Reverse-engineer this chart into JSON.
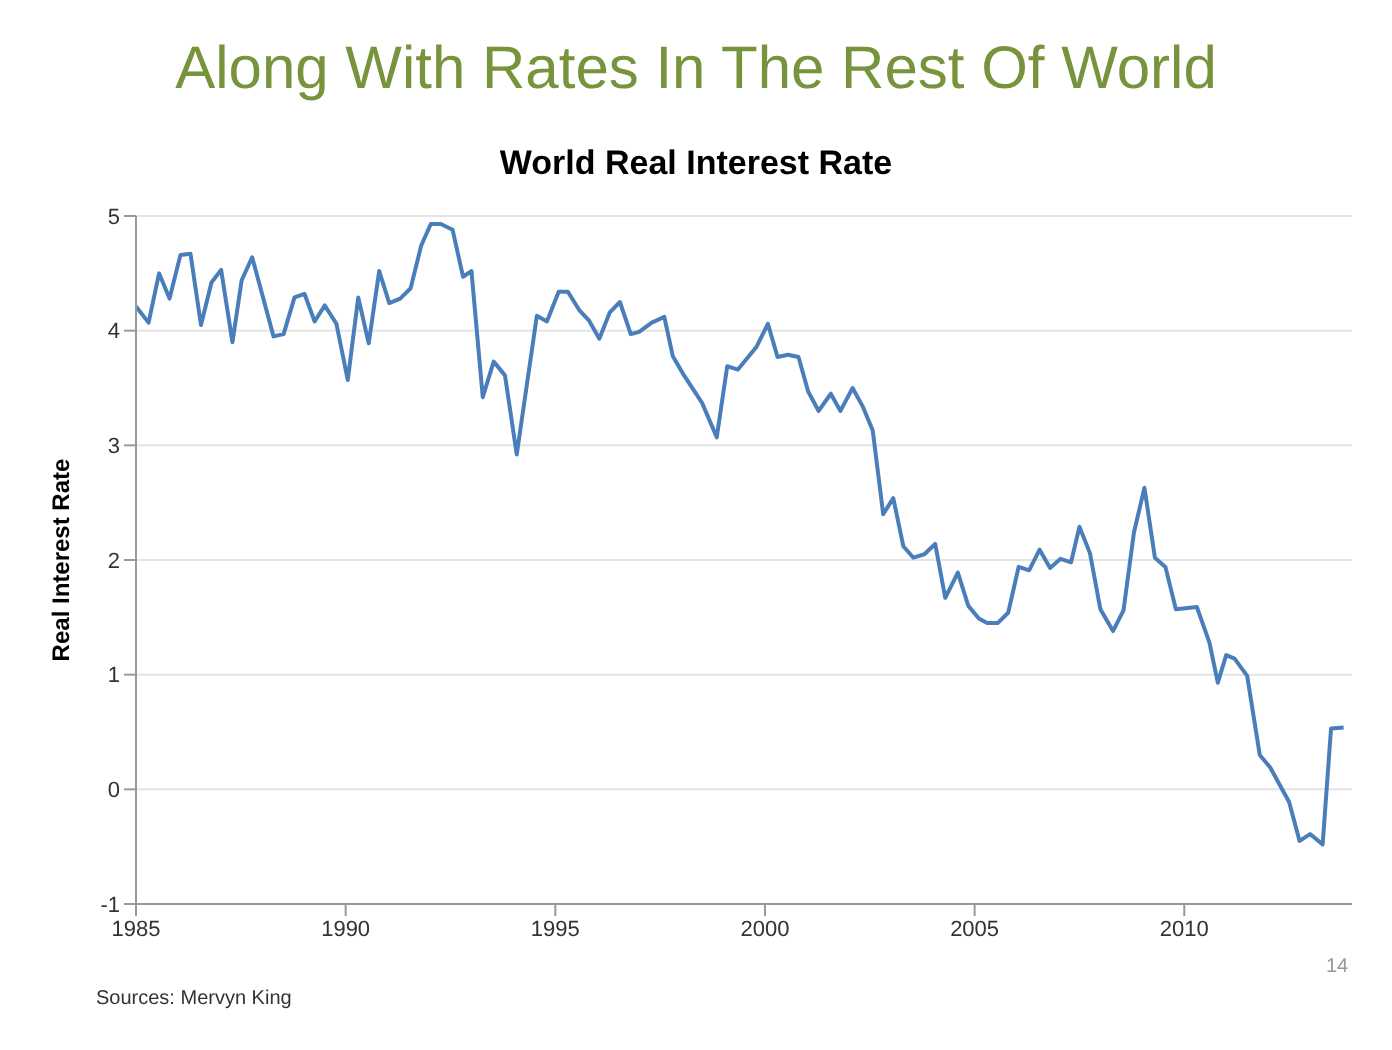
{
  "chart_data": {
    "type": "line",
    "title": "World Real Interest Rate",
    "subtitle": "Along With Rates In The Rest Of World",
    "ylabel": "Real Interest Rate",
    "annotations": [
      "Sources: Mervyn King",
      "14"
    ],
    "x": [
      1985.0,
      1985.3,
      1985.55,
      1985.8,
      1986.06,
      1986.3,
      1986.55,
      1986.8,
      1987.03,
      1987.3,
      1987.52,
      1987.77,
      1988.03,
      1988.28,
      1988.52,
      1988.78,
      1989.02,
      1989.26,
      1989.5,
      1989.78,
      1990.05,
      1990.3,
      1990.55,
      1990.8,
      1991.04,
      1991.3,
      1991.55,
      1991.8,
      1992.03,
      1992.27,
      1992.55,
      1992.8,
      1993.0,
      1993.27,
      1993.53,
      1993.8,
      1994.08,
      1994.56,
      1994.8,
      1995.08,
      1995.3,
      1995.57,
      1995.8,
      1996.05,
      1996.3,
      1996.54,
      1996.8,
      1997.0,
      1997.3,
      1997.6,
      1997.8,
      1998.07,
      1998.5,
      1998.85,
      1999.1,
      1999.35,
      1999.6,
      1999.8,
      2000.07,
      2000.3,
      2000.55,
      2000.8,
      2001.03,
      2001.28,
      2001.57,
      2001.8,
      2002.09,
      2002.33,
      2002.57,
      2002.82,
      2003.06,
      2003.3,
      2003.54,
      2003.8,
      2004.06,
      2004.3,
      2004.6,
      2004.85,
      2005.1,
      2005.3,
      2005.55,
      2005.8,
      2006.05,
      2006.3,
      2006.55,
      2006.8,
      2007.05,
      2007.3,
      2007.5,
      2007.75,
      2008.0,
      2008.3,
      2008.55,
      2008.8,
      2009.05,
      2009.3,
      2009.55,
      2009.8,
      2010.3,
      2010.6,
      2010.8,
      2011.0,
      2011.2,
      2011.5,
      2011.8,
      2012.05,
      2012.5,
      2012.75,
      2013.0,
      2013.3,
      2013.5,
      2013.8
    ],
    "series": [
      {
        "color": "#4a7ebb",
        "values": [
          4.21,
          4.07,
          4.5,
          4.28,
          4.66,
          4.67,
          4.05,
          4.42,
          4.53,
          3.9,
          4.44,
          4.64,
          4.29,
          3.95,
          3.97,
          4.29,
          4.32,
          4.08,
          4.22,
          4.06,
          3.57,
          4.29,
          3.89,
          4.52,
          4.24,
          4.28,
          4.37,
          4.74,
          4.93,
          4.93,
          4.88,
          4.47,
          4.52,
          3.42,
          3.73,
          3.61,
          2.92,
          4.13,
          4.08,
          4.34,
          4.34,
          4.18,
          4.09,
          3.93,
          4.16,
          4.25,
          3.97,
          3.99,
          4.07,
          4.12,
          3.78,
          3.61,
          3.37,
          3.07,
          3.69,
          3.66,
          3.77,
          3.86,
          4.06,
          3.77,
          3.79,
          3.77,
          3.47,
          3.3,
          3.45,
          3.3,
          3.5,
          3.34,
          3.13,
          2.4,
          2.54,
          2.12,
          2.02,
          2.05,
          2.14,
          1.67,
          1.89,
          1.6,
          1.49,
          1.45,
          1.45,
          1.54,
          1.94,
          1.91,
          2.09,
          1.93,
          2.01,
          1.98,
          2.29,
          2.06,
          1.57,
          1.38,
          1.56,
          2.24,
          2.63,
          2.02,
          1.94,
          1.57,
          1.59,
          1.28,
          0.93,
          1.17,
          1.14,
          0.99,
          0.3,
          0.19,
          -0.11,
          -0.45,
          -0.39,
          -0.48,
          0.53,
          0.54
        ]
      }
    ],
    "xlim": [
      1985,
      2014
    ],
    "xticks": [
      1985,
      1990,
      1995,
      2000,
      2005,
      2010
    ],
    "ylim": [
      -1,
      5
    ],
    "yticks": [
      -1,
      0,
      1,
      2,
      3,
      4,
      5
    ],
    "grid": "y",
    "legend": false,
    "marker": "none",
    "line_style": "solid"
  }
}
